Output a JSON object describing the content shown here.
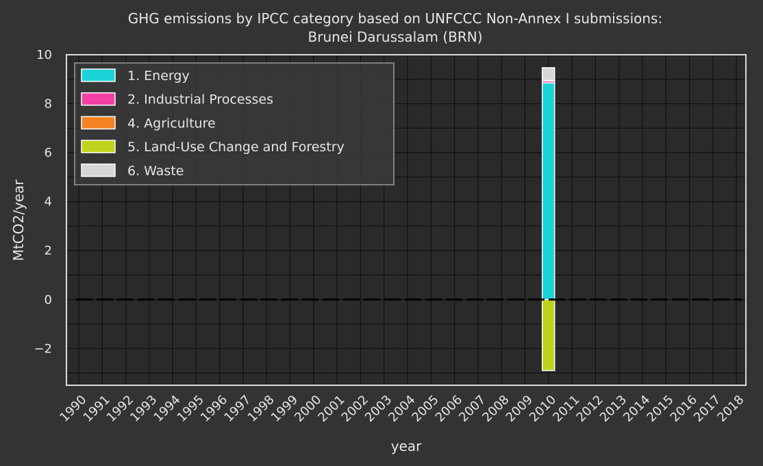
{
  "chart_data": {
    "type": "bar",
    "stacked": true,
    "title": "GHG emissions by IPCC category based on UNFCCC Non-Annex I submissions:",
    "subtitle": "Brunei Darussalam (BRN)",
    "xlabel": "year",
    "ylabel": "MtCO2/year",
    "ylim": [
      -3.5,
      10
    ],
    "yticks": [
      -2,
      0,
      2,
      4,
      6,
      8,
      10
    ],
    "categories": [
      "1990",
      "1991",
      "1992",
      "1993",
      "1994",
      "1995",
      "1996",
      "1997",
      "1998",
      "1999",
      "2000",
      "2001",
      "2002",
      "2003",
      "2004",
      "2005",
      "2006",
      "2007",
      "2008",
      "2009",
      "2010",
      "2011",
      "2012",
      "2013",
      "2014",
      "2015",
      "2016",
      "2017",
      "2018"
    ],
    "grid": true,
    "legend_position": "top-left",
    "zero_line": "dashed",
    "series": [
      {
        "name": "1. Energy",
        "color": "#1ad3d6",
        "values": [
          null,
          null,
          null,
          null,
          null,
          null,
          null,
          null,
          null,
          null,
          null,
          null,
          null,
          null,
          null,
          null,
          null,
          null,
          null,
          null,
          8.85,
          null,
          null,
          null,
          null,
          null,
          null,
          null,
          null
        ]
      },
      {
        "name": "2. Industrial Processes",
        "color": "#f23fa3",
        "values": [
          null,
          null,
          null,
          null,
          null,
          null,
          null,
          null,
          null,
          null,
          null,
          null,
          null,
          null,
          null,
          null,
          null,
          null,
          null,
          null,
          0.08,
          null,
          null,
          null,
          null,
          null,
          null,
          null,
          null
        ]
      },
      {
        "name": "4. Agriculture",
        "color": "#f58220",
        "values": [
          null,
          null,
          null,
          null,
          null,
          null,
          null,
          null,
          null,
          null,
          null,
          null,
          null,
          null,
          null,
          null,
          null,
          null,
          null,
          null,
          0.02,
          null,
          null,
          null,
          null,
          null,
          null,
          null,
          null
        ]
      },
      {
        "name": "5. Land-Use Change and Forestry",
        "color": "#bfd31e",
        "values": [
          null,
          null,
          null,
          null,
          null,
          null,
          null,
          null,
          null,
          null,
          null,
          null,
          null,
          null,
          null,
          null,
          null,
          null,
          null,
          null,
          -2.9,
          null,
          null,
          null,
          null,
          null,
          null,
          null,
          null
        ]
      },
      {
        "name": "6. Waste",
        "color": "#d6d6d6",
        "values": [
          null,
          null,
          null,
          null,
          null,
          null,
          null,
          null,
          null,
          null,
          null,
          null,
          null,
          null,
          null,
          null,
          null,
          null,
          null,
          null,
          0.52,
          null,
          null,
          null,
          null,
          null,
          null,
          null,
          null
        ]
      }
    ]
  }
}
